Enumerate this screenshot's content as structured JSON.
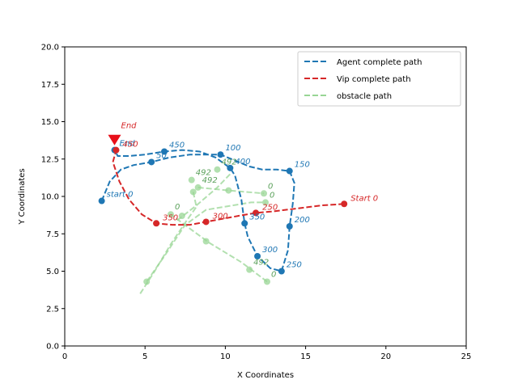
{
  "chart_data": {
    "type": "line",
    "title": "",
    "xlabel": "X Coordinates",
    "ylabel": "Y Coordinates",
    "xlim": [
      0,
      25
    ],
    "ylim": [
      0,
      20
    ],
    "xticks": [
      "0",
      "5",
      "10",
      "15",
      "20",
      "25"
    ],
    "yticks": [
      "0.0",
      "2.5",
      "5.0",
      "7.5",
      "10.0",
      "12.5",
      "15.0",
      "17.5",
      "20.0"
    ],
    "legend_position": "top-right",
    "colors": {
      "agent": "#1f77b4",
      "vip": "#d62728",
      "obstacle": "#98d594",
      "obstacle_label": "#5aa05a"
    },
    "series": [
      {
        "name": "Agent complete path",
        "style": "dashed",
        "color": "#1f77b4",
        "points": [
          [
            2.3,
            9.7
          ],
          [
            2.8,
            11.0
          ],
          [
            3.5,
            11.8
          ],
          [
            4.3,
            12.1
          ],
          [
            5.4,
            12.3
          ],
          [
            6.5,
            12.6
          ],
          [
            7.8,
            12.8
          ],
          [
            9.7,
            12.8
          ],
          [
            10.6,
            12.4
          ],
          [
            11.5,
            12.0
          ],
          [
            12.3,
            11.8
          ],
          [
            13.2,
            11.8
          ],
          [
            14.0,
            11.7
          ],
          [
            14.3,
            10.9
          ],
          [
            14.2,
            9.5
          ],
          [
            14.0,
            8.0
          ],
          [
            13.9,
            6.4
          ],
          [
            13.5,
            5.0
          ],
          [
            12.8,
            5.2
          ],
          [
            12.0,
            6.0
          ],
          [
            11.4,
            7.3
          ],
          [
            11.2,
            8.2
          ],
          [
            11.0,
            9.8
          ],
          [
            10.6,
            11.4
          ],
          [
            10.3,
            11.9
          ],
          [
            9.4,
            12.6
          ],
          [
            8.4,
            13.0
          ],
          [
            7.3,
            13.1
          ],
          [
            6.2,
            13.0
          ],
          [
            5.0,
            12.8
          ],
          [
            4.0,
            12.7
          ],
          [
            3.3,
            12.7
          ],
          [
            3.1,
            13.1
          ]
        ],
        "markers": [
          {
            "x": 2.3,
            "y": 9.7,
            "label": "start 0"
          },
          {
            "x": 5.4,
            "y": 12.3,
            "label": "50"
          },
          {
            "x": 9.7,
            "y": 12.8,
            "label": "100"
          },
          {
            "x": 14.0,
            "y": 11.7,
            "label": "150"
          },
          {
            "x": 14.0,
            "y": 8.0,
            "label": "200"
          },
          {
            "x": 13.5,
            "y": 5.0,
            "label": "250"
          },
          {
            "x": 12.0,
            "y": 6.0,
            "label": "300"
          },
          {
            "x": 11.2,
            "y": 8.2,
            "label": "350"
          },
          {
            "x": 10.3,
            "y": 11.9,
            "label": "400"
          },
          {
            "x": 6.2,
            "y": 13.0,
            "label": "450"
          },
          {
            "x": 3.1,
            "y": 13.1,
            "label": "End"
          }
        ]
      },
      {
        "name": "Vip complete path",
        "style": "dashed",
        "color": "#d62728",
        "points": [
          [
            17.4,
            9.5
          ],
          [
            16.0,
            9.4
          ],
          [
            14.5,
            9.2
          ],
          [
            13.0,
            9.0
          ],
          [
            11.9,
            8.9
          ],
          [
            10.8,
            8.7
          ],
          [
            9.8,
            8.5
          ],
          [
            8.8,
            8.3
          ],
          [
            7.8,
            8.1
          ],
          [
            6.7,
            8.1
          ],
          [
            5.7,
            8.2
          ],
          [
            4.8,
            8.8
          ],
          [
            4.0,
            9.8
          ],
          [
            3.4,
            11.0
          ],
          [
            3.0,
            12.3
          ],
          [
            3.2,
            13.1
          ]
        ],
        "markers": [
          {
            "x": 17.4,
            "y": 9.5,
            "label": "Start 0"
          },
          {
            "x": 11.9,
            "y": 8.9,
            "label": "250"
          },
          {
            "x": 8.8,
            "y": 8.3,
            "label": "300"
          },
          {
            "x": 5.7,
            "y": 8.2,
            "label": "350"
          },
          {
            "x": 3.2,
            "y": 13.1,
            "label": "450"
          }
        ],
        "end_marker": {
          "x": 3.1,
          "y": 13.8,
          "label": "End"
        }
      },
      {
        "name": "obstacle path",
        "style": "dashed",
        "color": "#98d594",
        "tracks": [
          {
            "points": [
              [
                12.6,
                4.3
              ],
              [
                11.0,
                5.6
              ],
              [
                9.0,
                6.9
              ],
              [
                7.6,
                8.0
              ],
              [
                6.6,
                8.8
              ]
            ],
            "markers": [
              {
                "x": 12.6,
                "y": 4.3,
                "label": "0"
              },
              {
                "x": 11.5,
                "y": 5.1,
                "label": "492"
              },
              {
                "x": 8.8,
                "y": 7.0,
                "label": ""
              },
              {
                "x": 6.6,
                "y": 8.8,
                "label": "0"
              }
            ]
          },
          {
            "points": [
              [
                7.0,
                8.4
              ],
              [
                8.2,
                9.4
              ],
              [
                9.5,
                10.6
              ],
              [
                10.3,
                11.5
              ]
            ],
            "markers": [
              {
                "x": 7.3,
                "y": 8.7,
                "label": ""
              },
              {
                "x": 9.5,
                "y": 11.8,
                "label": "492"
              }
            ]
          },
          {
            "points": [
              [
                5.1,
                4.3
              ],
              [
                6.2,
                6.0
              ],
              [
                7.5,
                8.1
              ],
              [
                8.8,
                9.1
              ],
              [
                11.6,
                9.6
              ],
              [
                12.5,
                9.6
              ]
            ],
            "markers": [
              {
                "x": 5.1,
                "y": 4.3,
                "label": ""
              },
              {
                "x": 12.5,
                "y": 9.6,
                "label": "0"
              }
            ]
          },
          {
            "points": [
              [
                8.3,
                10.6
              ],
              [
                10.2,
                10.4
              ],
              [
                12.4,
                10.2
              ]
            ],
            "markers": [
              {
                "x": 8.3,
                "y": 10.6,
                "label": "492"
              },
              {
                "x": 10.2,
                "y": 10.4,
                "label": ""
              },
              {
                "x": 12.4,
                "y": 10.2,
                "label": "0"
              }
            ]
          },
          {
            "points": [
              [
                4.7,
                3.5
              ],
              [
                5.6,
                5.0
              ],
              [
                6.6,
                6.8
              ],
              [
                7.6,
                8.4
              ],
              [
                8.2,
                9.3
              ],
              [
                8.0,
                10.3
              ]
            ],
            "markers": [
              {
                "x": 8.0,
                "y": 10.3,
                "label": ""
              },
              {
                "x": 7.9,
                "y": 11.1,
                "label": "492"
              }
            ]
          }
        ]
      }
    ]
  }
}
